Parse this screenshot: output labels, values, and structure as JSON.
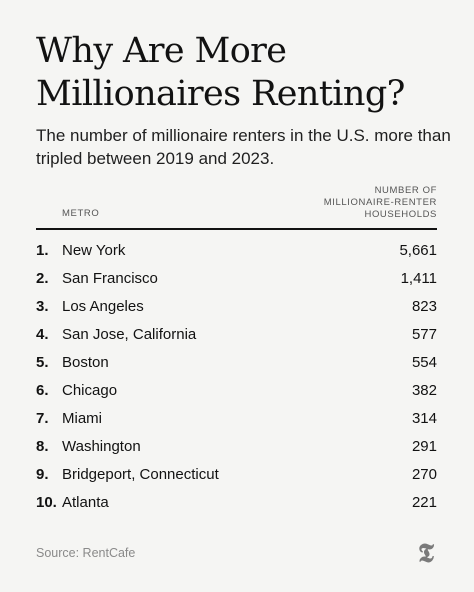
{
  "title": "Why Are More Millionaires Renting?",
  "subtitle": "The number of millionaire renters in the U.S. more than tripled between 2019 and 2023.",
  "chart_data": {
    "type": "table",
    "columns": {
      "metro": "METRO",
      "value": [
        "NUMBER OF",
        "MILLIONAIRE-RENTER",
        "HOUSEHOLDS"
      ]
    },
    "rows": [
      {
        "rank": "1.",
        "metro": "New York",
        "value": "5,661"
      },
      {
        "rank": "2.",
        "metro": "San Francisco",
        "value": "1,411"
      },
      {
        "rank": "3.",
        "metro": "Los Angeles",
        "value": "823"
      },
      {
        "rank": "4.",
        "metro": "San Jose, California",
        "value": "577"
      },
      {
        "rank": "5.",
        "metro": "Boston",
        "value": "554"
      },
      {
        "rank": "6.",
        "metro": "Chicago",
        "value": "382"
      },
      {
        "rank": "7.",
        "metro": "Miami",
        "value": "314"
      },
      {
        "rank": "8.",
        "metro": "Washington",
        "value": "291"
      },
      {
        "rank": "9.",
        "metro": "Bridgeport, Connecticut",
        "value": "270"
      },
      {
        "rank": "10.",
        "metro": "Atlanta",
        "value": "221"
      }
    ]
  },
  "source": "Source: RentCafe",
  "logo": {
    "icon": "nyt-t-logo-icon",
    "glyph": "𝕿"
  }
}
